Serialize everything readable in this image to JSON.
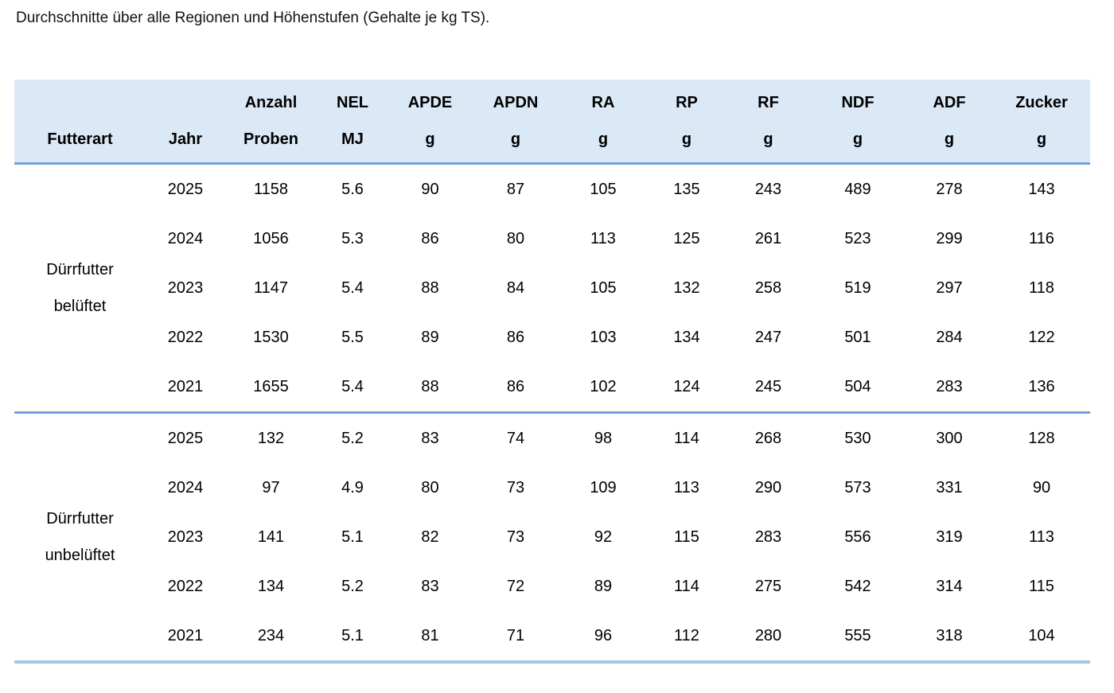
{
  "caption": "Durchschnitte über alle Regionen und Höhenstufen (Gehalte je kg TS).",
  "colors": {
    "header_bg": "#dbe8f6",
    "rule_strong": "#6fa3d8",
    "rule_light": "#a4c7e7",
    "text": "#000000"
  },
  "table": {
    "columns": [
      {
        "key": "futterart",
        "line1": "",
        "line2": "Futterart"
      },
      {
        "key": "jahr",
        "line1": "",
        "line2": "Jahr"
      },
      {
        "key": "anzahl",
        "line1": "Anzahl",
        "line2": "Proben"
      },
      {
        "key": "nel",
        "line1": "NEL",
        "line2": "MJ"
      },
      {
        "key": "apde",
        "line1": "APDE",
        "line2": "g"
      },
      {
        "key": "apdn",
        "line1": "APDN",
        "line2": "g"
      },
      {
        "key": "ra",
        "line1": "RA",
        "line2": "g"
      },
      {
        "key": "rp",
        "line1": "RP",
        "line2": "g"
      },
      {
        "key": "rf",
        "line1": "RF",
        "line2": "g"
      },
      {
        "key": "ndf",
        "line1": "NDF",
        "line2": "g"
      },
      {
        "key": "adf",
        "line1": "ADF",
        "line2": "g"
      },
      {
        "key": "zucker",
        "line1": "Zucker",
        "line2": "g"
      }
    ],
    "groups": [
      {
        "name": "Dürrfutter belüftet",
        "name_lines": [
          "Dürrfutter",
          "belüftet"
        ],
        "rows": [
          {
            "jahr": "2025",
            "values": [
              "1158",
              "5.6",
              "90",
              "87",
              "105",
              "135",
              "243",
              "489",
              "278",
              "143"
            ]
          },
          {
            "jahr": "2024",
            "values": [
              "1056",
              "5.3",
              "86",
              "80",
              "113",
              "125",
              "261",
              "523",
              "299",
              "116"
            ]
          },
          {
            "jahr": "2023",
            "values": [
              "1147",
              "5.4",
              "88",
              "84",
              "105",
              "132",
              "258",
              "519",
              "297",
              "118"
            ]
          },
          {
            "jahr": "2022",
            "values": [
              "1530",
              "5.5",
              "89",
              "86",
              "103",
              "134",
              "247",
              "501",
              "284",
              "122"
            ]
          },
          {
            "jahr": "2021",
            "values": [
              "1655",
              "5.4",
              "88",
              "86",
              "102",
              "124",
              "245",
              "504",
              "283",
              "136"
            ]
          }
        ]
      },
      {
        "name": "Dürrfutter unbelüftet",
        "name_lines": [
          "Dürrfutter",
          "unbelüftet"
        ],
        "rows": [
          {
            "jahr": "2025",
            "values": [
              "132",
              "5.2",
              "83",
              "74",
              "98",
              "114",
              "268",
              "530",
              "300",
              "128"
            ]
          },
          {
            "jahr": "2024",
            "values": [
              "97",
              "4.9",
              "80",
              "73",
              "109",
              "113",
              "290",
              "573",
              "331",
              "90"
            ]
          },
          {
            "jahr": "2023",
            "values": [
              "141",
              "5.1",
              "82",
              "73",
              "92",
              "115",
              "283",
              "556",
              "319",
              "113"
            ]
          },
          {
            "jahr": "2022",
            "values": [
              "134",
              "5.2",
              "83",
              "72",
              "89",
              "114",
              "275",
              "542",
              "314",
              "115"
            ]
          },
          {
            "jahr": "2021",
            "values": [
              "234",
              "5.1",
              "81",
              "71",
              "96",
              "112",
              "280",
              "555",
              "318",
              "104"
            ]
          }
        ]
      }
    ]
  }
}
